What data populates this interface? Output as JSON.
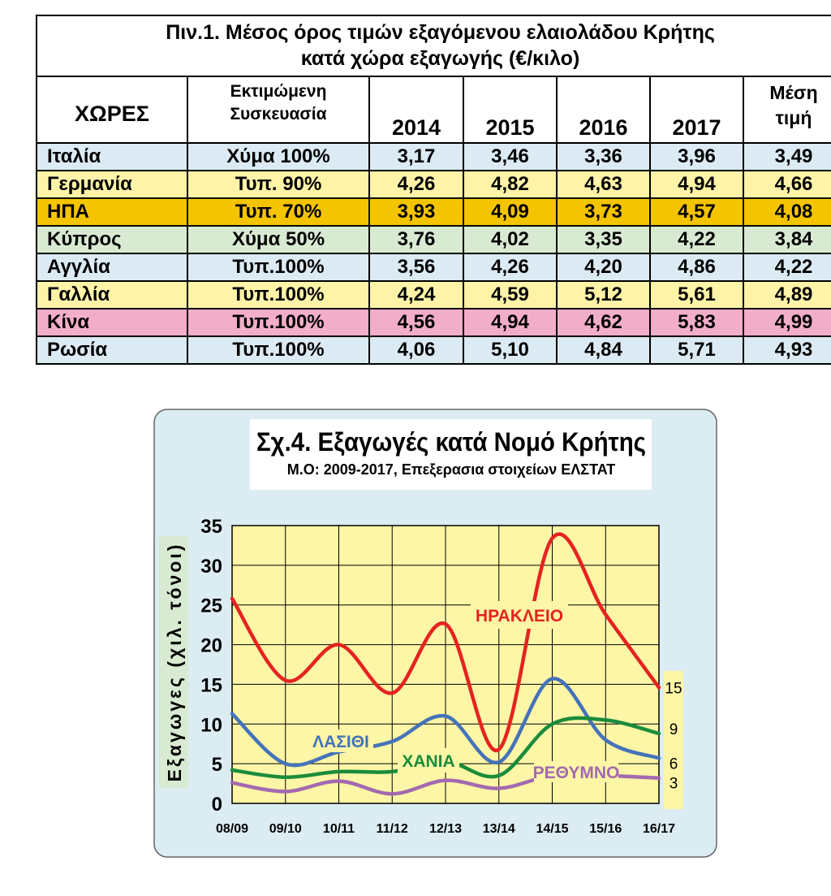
{
  "table": {
    "title_line1": "Πιν.1. Μέσος όρος τιμών εξαγόμενου ελαιολάδου  Κρήτης",
    "title_line2": "κατά χώρα εξαγωγής (€/κιλο)",
    "headers": {
      "country": "ΧΩΡΕΣ",
      "packaging_l1": "Εκτιμώμενη",
      "packaging_l2": "Συσκευασία",
      "years": [
        "2014",
        "2015",
        "2016",
        "2017"
      ],
      "avg_l1": "Μέση",
      "avg_l2": "τιμή"
    },
    "rows": [
      {
        "country": "Ιταλία",
        "packaging": "Χύμα 100%",
        "values": [
          "3,17",
          "3,46",
          "3,36",
          "3,96"
        ],
        "avg": "3,49",
        "color": "#dbeaf3"
      },
      {
        "country": "Γερμανία",
        "packaging": "Τυπ. 90%",
        "values": [
          "4,26",
          "4,82",
          "4,63",
          "4,94"
        ],
        "avg": "4,66",
        "color": "#fff3a8"
      },
      {
        "country": "ΗΠΑ",
        "packaging": "Τυπ. 70%",
        "values": [
          "3,93",
          "4,09",
          "3,73",
          "4,57"
        ],
        "avg": "4,08",
        "color": "#f5c400"
      },
      {
        "country": "Κύπρος",
        "packaging": "Χύμα 50%",
        "values": [
          "3,76",
          "4,02",
          "3,35",
          "4,22"
        ],
        "avg": "3,84",
        "color": "#d9ead2"
      },
      {
        "country": "Αγγλία",
        "packaging": "Τυπ.100%",
        "values": [
          "3,56",
          "4,26",
          "4,20",
          "4,86"
        ],
        "avg": "4,22",
        "color": "#dbeaf3"
      },
      {
        "country": "Γαλλία",
        "packaging": "Τυπ.100%",
        "values": [
          "4,24",
          "4,59",
          "5,12",
          "5,61"
        ],
        "avg": "4,89",
        "color": "#fff3a8"
      },
      {
        "country": "Κίνα",
        "packaging": "Τυπ.100%",
        "values": [
          "4,56",
          "4,94",
          "4,62",
          "5,83"
        ],
        "avg": "4,99",
        "color": "#f2aec8"
      },
      {
        "country": "Ρωσία",
        "packaging": "Τυπ.100%",
        "values": [
          "4,06",
          "5,10",
          "4,84",
          "5,71"
        ],
        "avg": "4,93",
        "color": "#dbeaf3"
      }
    ]
  },
  "chart_data": {
    "type": "line",
    "title": "Σχ.4. Εξαγωγές κατά Νομό  Κρήτης",
    "subtitle": "Μ.Ο: 2009-2017, Επεξερασια στοιχείων ΕΛΣΤΑΤ",
    "ylabel": "Εξαγωγες (χιλ. τόνοι)",
    "xlabel": "",
    "categories": [
      "08/09",
      "09/10",
      "10/11",
      "11/12",
      "12/13",
      "13/14",
      "14/15",
      "15/16",
      "16/17"
    ],
    "ylim": [
      0,
      35
    ],
    "yticks": [
      "0",
      "5",
      "10",
      "15",
      "20",
      "25",
      "30",
      "35"
    ],
    "grid": true,
    "colors": {
      "panel": "#dcecf3",
      "plot": "#fdf6a6",
      "label_box": "#fdf6a6"
    },
    "series": [
      {
        "name": "ΗΡΑΚΛΕΙΟ",
        "color": "#e52320",
        "values": [
          25.8,
          15.5,
          20.0,
          13.9,
          22.6,
          6.8,
          33.4,
          23.8,
          14.6
        ],
        "end_label": "15"
      },
      {
        "name": "ΛΑΣΙΘΙ",
        "color": "#4573b9",
        "values": [
          11.3,
          5.0,
          6.5,
          7.8,
          11.0,
          5.2,
          15.7,
          8.0,
          5.7
        ],
        "end_label": "6"
      },
      {
        "name": "ΧΑΝΙΑ",
        "color": "#1a8c3c",
        "values": [
          4.2,
          3.3,
          4.0,
          4.0,
          5.3,
          3.5,
          10.0,
          10.5,
          8.8
        ],
        "end_label": "9"
      },
      {
        "name": "ΡΕΘΥΜΝΟ",
        "color": "#a369b0",
        "values": [
          2.6,
          1.5,
          2.8,
          1.2,
          2.9,
          1.9,
          3.5,
          3.5,
          3.2
        ],
        "end_label": "3"
      }
    ]
  }
}
